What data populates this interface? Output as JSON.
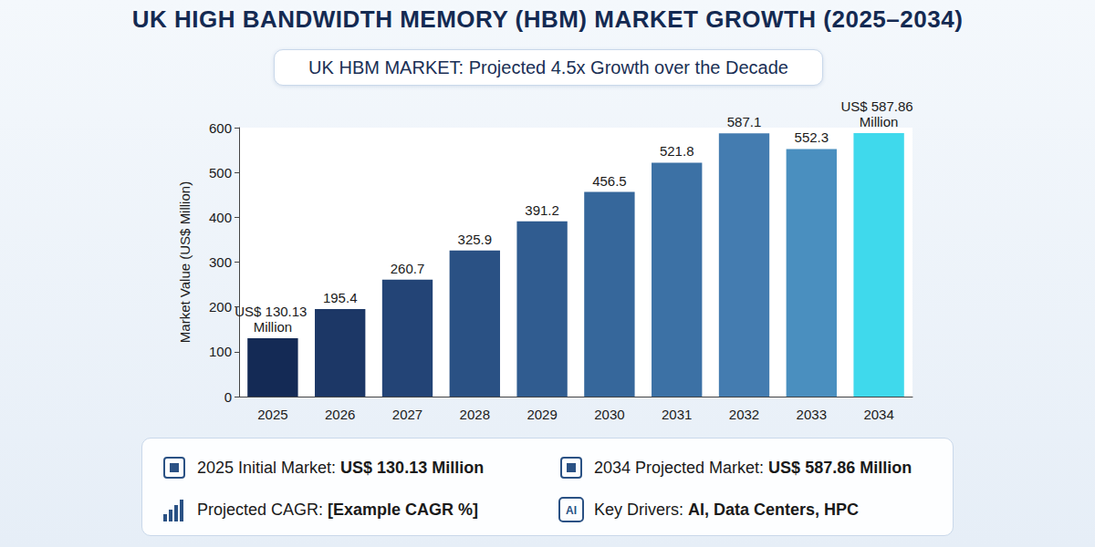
{
  "chart_data": {
    "type": "bar",
    "title": "UK HIGH BANDWIDTH MEMORY (HBM) MARKET GROWTH (2025–2034)",
    "subtitle": "UK HBM MARKET: Projected 4.5x Growth over the Decade",
    "y_label": "Market Value (US$ Million)",
    "categories": [
      "2025",
      "2026",
      "2027",
      "2028",
      "2029",
      "2030",
      "2031",
      "2032",
      "2033",
      "2034"
    ],
    "values": [
      130.13,
      195.4,
      260.7,
      325.9,
      391.2,
      456.5,
      521.8,
      587.1,
      552.3,
      587.86
    ],
    "value_labels": [
      "US$ 130.13 Million",
      "195.4",
      "260.7",
      "325.9",
      "391.2",
      "456.5",
      "521.8",
      "587.1",
      "552.3",
      "US$ 587.86 Million"
    ],
    "colors": [
      "#142a55",
      "#1c3766",
      "#234476",
      "#2a5184",
      "#305c90",
      "#36679b",
      "#3c71a5",
      "#447cb0",
      "#4a8fbf",
      "#3fd9ec"
    ],
    "ylim": [
      0,
      600
    ],
    "yticks": [
      0,
      100,
      200,
      300,
      400,
      500,
      600
    ],
    "grid": false,
    "data_labels": true,
    "annotations": [
      {
        "text": "2025 Initial Market:",
        "emphasis": "US$ 130.13 Million"
      },
      {
        "text": "2034 Projected Market:",
        "emphasis": "US$ 587.86 Million"
      },
      {
        "text": "Projected CAGR:",
        "emphasis": "[Example CAGR %]"
      },
      {
        "text": "Key Drivers:",
        "emphasis": "AI, Data Centers, HPC",
        "icon": "AI"
      }
    ]
  }
}
